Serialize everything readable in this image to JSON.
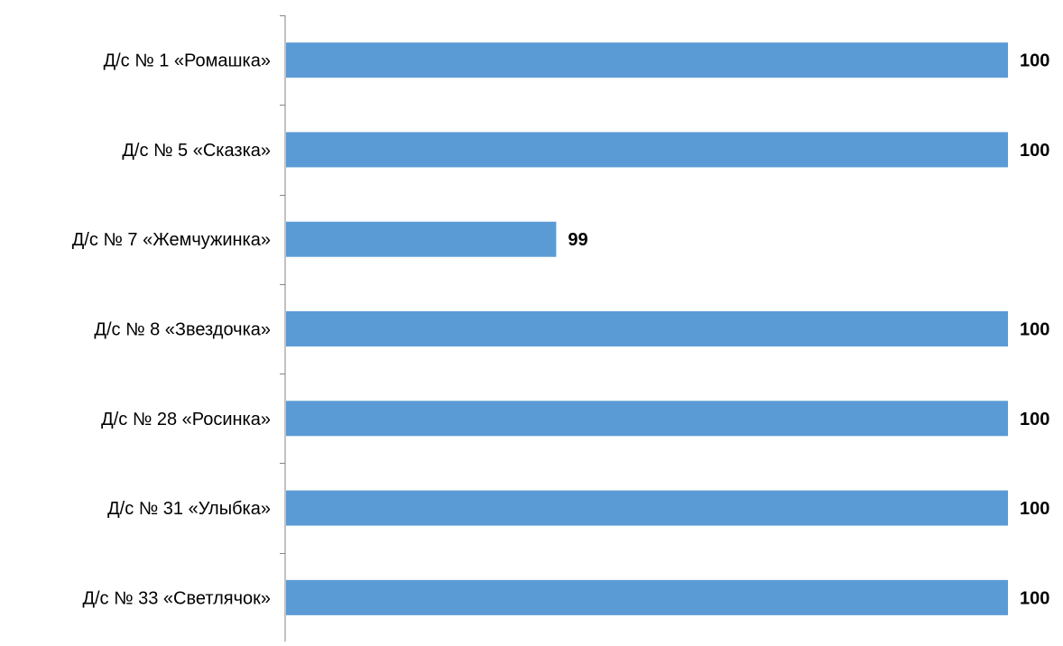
{
  "chart_data": {
    "type": "bar",
    "orientation": "horizontal",
    "categories": [
      "Д/с № 1 «Ромашка»",
      "Д/с № 5 «Сказка»",
      "Д/с № 7 «Жемчужинка»",
      "Д/с № 8 «Звездочка»",
      "Д/с № 28 «Росинка»",
      "Д/с № 31 «Улыбка»",
      "Д/с № 33 «Светлячок»"
    ],
    "values": [
      100,
      100,
      99,
      100,
      100,
      100,
      100
    ],
    "data_labels": [
      "100",
      "100",
      "99",
      "100",
      "100",
      "100",
      "100"
    ],
    "xlim": [
      98.4,
      100
    ],
    "grid": false,
    "legend": "none",
    "colors": {
      "bar": "#5B9BD5",
      "axis": "#868686",
      "text": "#000000"
    }
  }
}
